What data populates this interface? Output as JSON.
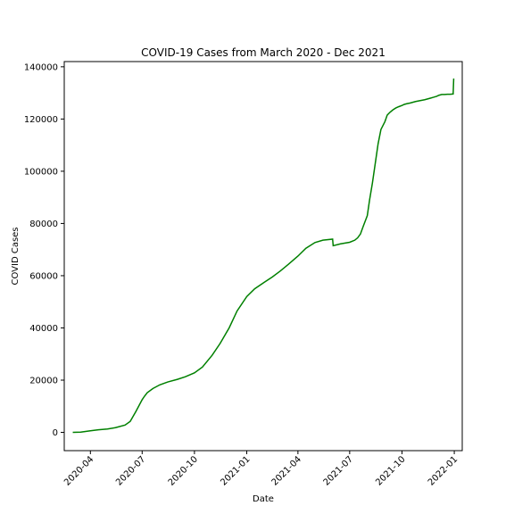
{
  "chart_data": {
    "type": "line",
    "title": "COVID-19 Cases from March 2020 - Dec 2021",
    "xlabel": "Date",
    "ylabel": "COVID Cases",
    "xlim": [
      "2020-02-15",
      "2022-01-15"
    ],
    "ylim": [
      -7000,
      142000
    ],
    "grid": false,
    "line_color": "#008000",
    "x_ticks": [
      "2020-04",
      "2020-07",
      "2020-10",
      "2021-01",
      "2021-04",
      "2021-07",
      "2021-10",
      "2022-01"
    ],
    "y_ticks": [
      0,
      20000,
      40000,
      60000,
      80000,
      100000,
      120000,
      140000
    ],
    "series": [
      {
        "x": [
          "2020-03-01",
          "2020-03-15",
          "2020-04-01",
          "2020-04-15",
          "2020-05-01",
          "2020-05-15",
          "2020-06-01",
          "2020-06-10",
          "2020-06-20",
          "2020-07-01",
          "2020-07-05",
          "2020-07-10",
          "2020-07-20",
          "2020-08-01",
          "2020-08-15",
          "2020-09-01",
          "2020-09-15",
          "2020-10-01",
          "2020-10-15",
          "2020-11-01",
          "2020-11-15",
          "2020-12-01",
          "2020-12-15",
          "2021-01-01",
          "2021-01-15",
          "2021-02-01",
          "2021-02-15",
          "2021-03-01",
          "2021-03-15",
          "2021-04-01",
          "2021-04-15",
          "2021-05-01",
          "2021-05-15",
          "2021-06-01",
          "2021-06-02",
          "2021-06-15",
          "2021-07-01",
          "2021-07-10",
          "2021-07-15",
          "2021-07-20",
          "2021-07-25",
          "2021-08-01",
          "2021-08-05",
          "2021-08-10",
          "2021-08-15",
          "2021-08-20",
          "2021-08-25",
          "2021-09-01",
          "2021-09-05",
          "2021-09-10",
          "2021-09-15",
          "2021-09-20",
          "2021-09-25",
          "2021-10-01",
          "2021-10-05",
          "2021-10-10",
          "2021-10-15",
          "2021-10-20",
          "2021-10-25",
          "2021-11-01",
          "2021-11-10",
          "2021-11-15",
          "2021-11-20",
          "2021-11-25",
          "2021-12-01",
          "2021-12-05",
          "2021-12-10",
          "2021-12-15",
          "2021-12-20",
          "2021-12-25",
          "2021-12-30",
          "2021-12-31"
        ],
        "y": [
          0,
          100,
          600,
          1000,
          1300,
          1800,
          2800,
          4200,
          8000,
          12500,
          13800,
          15200,
          16800,
          18200,
          19300,
          20300,
          21300,
          22800,
          25000,
          29500,
          34000,
          40000,
          46500,
          52000,
          55000,
          57500,
          59500,
          61800,
          64300,
          67500,
          70500,
          72700,
          73600,
          74000,
          71500,
          72200,
          72800,
          73600,
          74500,
          76000,
          79000,
          83000,
          89000,
          95500,
          103000,
          110500,
          116000,
          119000,
          121500,
          122600,
          123500,
          124200,
          124700,
          125200,
          125600,
          125900,
          126100,
          126400,
          126700,
          127000,
          127400,
          127700,
          128000,
          128300,
          128700,
          129100,
          129400,
          129400,
          129500,
          129500,
          129600,
          135500
        ]
      }
    ]
  }
}
